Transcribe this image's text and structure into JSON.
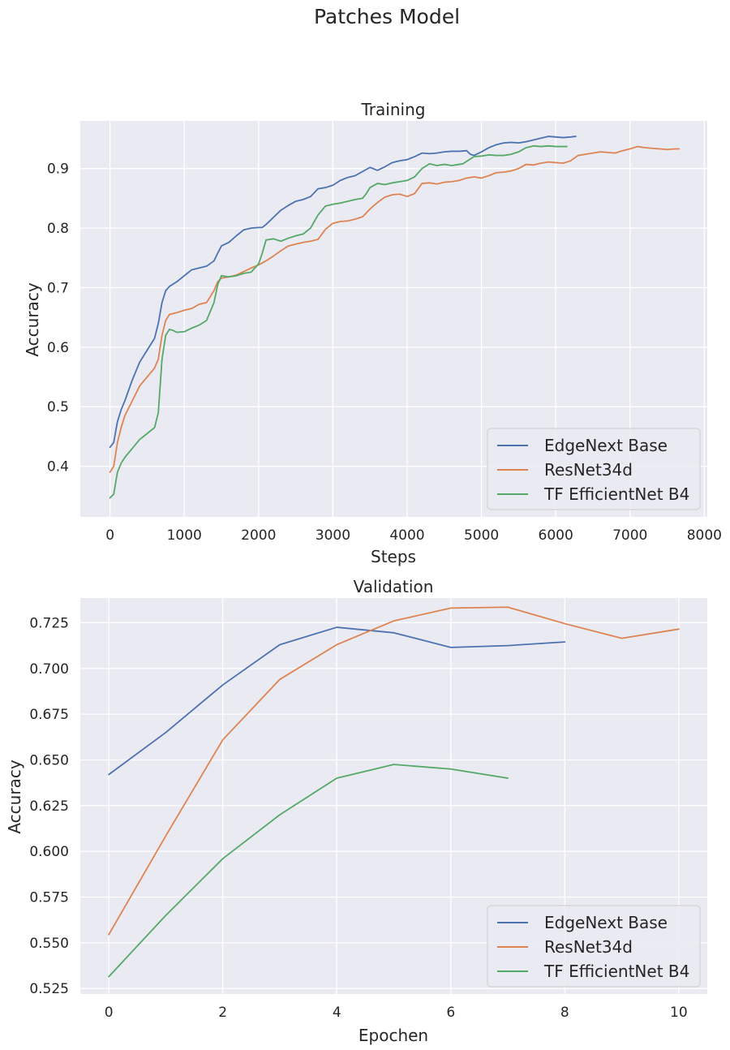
{
  "figure": {
    "title": "Patches Model"
  },
  "colors": {
    "plot_bg": "#EAEAF2",
    "grid": "#FFFFFF",
    "text": "#262626"
  },
  "chart_data": [
    {
      "type": "line",
      "title": "Training",
      "xlabel": "Steps",
      "ylabel": "Accuracy",
      "xlim": [
        -400,
        8040
      ],
      "ylim": [
        0.315,
        0.98
      ],
      "xticks": [
        0,
        1000,
        2000,
        3000,
        4000,
        5000,
        6000,
        7000,
        8000
      ],
      "yticks": [
        0.4,
        0.5,
        0.6,
        0.7,
        0.8,
        0.9
      ],
      "ytick_labels": [
        "0.4",
        "0.5",
        "0.6",
        "0.7",
        "0.8",
        "0.9"
      ],
      "legend": {
        "position": "lower right"
      },
      "series": [
        {
          "name": "EdgeNext Base",
          "color": "#4C72B0",
          "x": [
            0,
            50,
            100,
            150,
            200,
            300,
            400,
            500,
            600,
            650,
            700,
            750,
            800,
            900,
            1000,
            1100,
            1200,
            1300,
            1400,
            1450,
            1500,
            1600,
            1700,
            1800,
            1900,
            2000,
            2050,
            2100,
            2200,
            2300,
            2400,
            2500,
            2600,
            2700,
            2800,
            2900,
            3000,
            3100,
            3200,
            3300,
            3400,
            3500,
            3600,
            3700,
            3800,
            3900,
            4000,
            4100,
            4200,
            4300,
            4400,
            4500,
            4600,
            4700,
            4800,
            4850,
            4900,
            5000,
            5100,
            5200,
            5300,
            5400,
            5500,
            5600,
            5700,
            5800,
            5900,
            6000,
            6100,
            6200,
            6270
          ],
          "y": [
            0.432,
            0.44,
            0.475,
            0.495,
            0.51,
            0.545,
            0.575,
            0.595,
            0.615,
            0.64,
            0.675,
            0.695,
            0.702,
            0.71,
            0.72,
            0.73,
            0.733,
            0.736,
            0.745,
            0.758,
            0.77,
            0.776,
            0.787,
            0.797,
            0.8,
            0.801,
            0.801,
            0.806,
            0.818,
            0.83,
            0.838,
            0.845,
            0.848,
            0.853,
            0.866,
            0.868,
            0.872,
            0.88,
            0.885,
            0.888,
            0.895,
            0.902,
            0.897,
            0.903,
            0.91,
            0.913,
            0.915,
            0.92,
            0.926,
            0.925,
            0.926,
            0.928,
            0.929,
            0.929,
            0.93,
            0.924,
            0.922,
            0.928,
            0.935,
            0.94,
            0.943,
            0.944,
            0.943,
            0.945,
            0.948,
            0.951,
            0.954,
            0.953,
            0.952,
            0.953,
            0.954
          ]
        },
        {
          "name": "ResNet34d",
          "color": "#DD8452",
          "x": [
            0,
            50,
            100,
            150,
            200,
            300,
            400,
            500,
            600,
            650,
            700,
            750,
            800,
            900,
            1000,
            1100,
            1200,
            1300,
            1400,
            1450,
            1500,
            1600,
            1700,
            1800,
            1900,
            2000,
            2100,
            2200,
            2300,
            2400,
            2500,
            2600,
            2700,
            2800,
            2900,
            3000,
            3100,
            3200,
            3300,
            3400,
            3500,
            3600,
            3700,
            3800,
            3900,
            4000,
            4100,
            4200,
            4300,
            4400,
            4500,
            4600,
            4700,
            4800,
            4900,
            5000,
            5100,
            5200,
            5300,
            5400,
            5500,
            5600,
            5700,
            5800,
            5900,
            6000,
            6100,
            6200,
            6300,
            6400,
            6500,
            6600,
            6700,
            6800,
            6900,
            7000,
            7100,
            7200,
            7300,
            7400,
            7500,
            7600,
            7660
          ],
          "y": [
            0.39,
            0.4,
            0.44,
            0.465,
            0.485,
            0.51,
            0.535,
            0.55,
            0.565,
            0.58,
            0.62,
            0.645,
            0.655,
            0.658,
            0.662,
            0.665,
            0.672,
            0.675,
            0.695,
            0.71,
            0.716,
            0.718,
            0.721,
            0.727,
            0.733,
            0.738,
            0.745,
            0.753,
            0.762,
            0.77,
            0.773,
            0.776,
            0.778,
            0.781,
            0.798,
            0.808,
            0.811,
            0.812,
            0.815,
            0.819,
            0.832,
            0.843,
            0.852,
            0.856,
            0.857,
            0.853,
            0.858,
            0.875,
            0.876,
            0.874,
            0.877,
            0.878,
            0.88,
            0.884,
            0.886,
            0.884,
            0.888,
            0.893,
            0.894,
            0.896,
            0.9,
            0.907,
            0.906,
            0.909,
            0.911,
            0.91,
            0.909,
            0.913,
            0.922,
            0.924,
            0.926,
            0.928,
            0.927,
            0.926,
            0.93,
            0.933,
            0.937,
            0.935,
            0.934,
            0.933,
            0.932,
            0.933,
            0.933
          ]
        },
        {
          "name": "TF EfficientNet B4",
          "color": "#55A868",
          "x": [
            0,
            50,
            100,
            150,
            200,
            300,
            400,
            500,
            600,
            650,
            700,
            750,
            800,
            850,
            900,
            1000,
            1100,
            1200,
            1300,
            1400,
            1450,
            1500,
            1600,
            1700,
            1800,
            1900,
            2000,
            2050,
            2100,
            2200,
            2300,
            2400,
            2500,
            2600,
            2650,
            2700,
            2800,
            2900,
            3000,
            3100,
            3200,
            3300,
            3400,
            3450,
            3500,
            3600,
            3700,
            3800,
            3900,
            4000,
            4100,
            4200,
            4300,
            4400,
            4500,
            4600,
            4700,
            4750,
            4800,
            4900,
            5000,
            5100,
            5200,
            5300,
            5400,
            5500,
            5600,
            5700,
            5800,
            5900,
            6000,
            6100,
            6150
          ],
          "y": [
            0.347,
            0.353,
            0.39,
            0.405,
            0.415,
            0.43,
            0.445,
            0.455,
            0.465,
            0.49,
            0.58,
            0.62,
            0.63,
            0.628,
            0.625,
            0.626,
            0.632,
            0.637,
            0.645,
            0.675,
            0.705,
            0.72,
            0.718,
            0.72,
            0.724,
            0.726,
            0.74,
            0.758,
            0.78,
            0.782,
            0.778,
            0.783,
            0.787,
            0.79,
            0.795,
            0.8,
            0.822,
            0.837,
            0.84,
            0.842,
            0.845,
            0.848,
            0.85,
            0.858,
            0.868,
            0.875,
            0.873,
            0.876,
            0.878,
            0.88,
            0.886,
            0.9,
            0.908,
            0.905,
            0.907,
            0.905,
            0.907,
            0.908,
            0.912,
            0.92,
            0.921,
            0.923,
            0.922,
            0.922,
            0.924,
            0.928,
            0.935,
            0.938,
            0.937,
            0.938,
            0.937,
            0.937,
            0.937
          ]
        }
      ]
    },
    {
      "type": "line",
      "title": "Validation",
      "xlabel": "Epochen",
      "ylabel": "Accuracy",
      "xlim": [
        -0.5,
        10.5
      ],
      "ylim": [
        0.522,
        0.7385
      ],
      "xticks": [
        0,
        2,
        4,
        6,
        8,
        10
      ],
      "yticks": [
        0.525,
        0.55,
        0.575,
        0.6,
        0.625,
        0.65,
        0.675,
        0.7,
        0.725
      ],
      "ytick_labels": [
        "0.525",
        "0.550",
        "0.575",
        "0.600",
        "0.625",
        "0.650",
        "0.675",
        "0.700",
        "0.725"
      ],
      "legend": {
        "position": "lower right"
      },
      "series": [
        {
          "name": "EdgeNext Base",
          "color": "#4C72B0",
          "x": [
            0,
            1,
            2,
            3,
            4,
            5,
            6,
            7,
            8
          ],
          "y": [
            0.642,
            0.665,
            0.691,
            0.713,
            0.7225,
            0.7195,
            0.7115,
            0.7125,
            0.7145
          ]
        },
        {
          "name": "ResNet34d",
          "color": "#DD8452",
          "x": [
            0,
            1,
            2,
            3,
            4,
            5,
            6,
            7,
            8,
            9,
            10
          ],
          "y": [
            0.5545,
            0.6085,
            0.661,
            0.694,
            0.713,
            0.726,
            0.733,
            0.7335,
            0.7245,
            0.7165,
            0.7215
          ]
        },
        {
          "name": "TF EfficientNet B4",
          "color": "#55A868",
          "x": [
            0,
            1,
            2,
            3,
            4,
            5,
            6,
            7
          ],
          "y": [
            0.5315,
            0.565,
            0.596,
            0.62,
            0.64,
            0.6475,
            0.645,
            0.64
          ]
        }
      ]
    }
  ]
}
